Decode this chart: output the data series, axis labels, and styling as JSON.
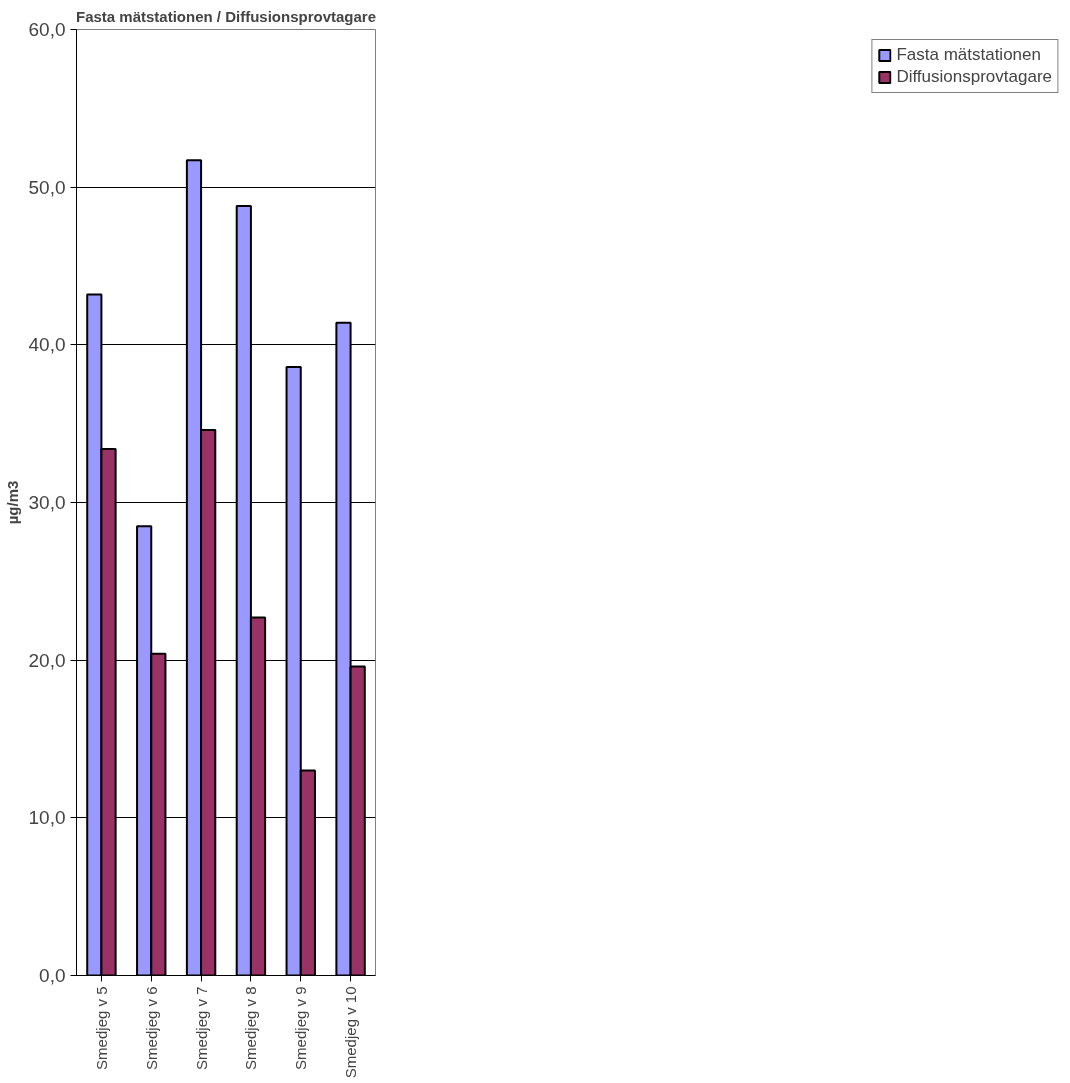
{
  "chart_data": {
    "type": "bar",
    "title": "Fasta mätstationen / Diffusionsprovtagare",
    "ylabel": "µg/m3",
    "categories": [
      "Smedjeg v 5",
      "Smedjeg v 6",
      "Smedjeg v 7",
      "Smedjeg v 8",
      "Smedjeg v 9",
      "Smedjeg v 10"
    ],
    "series": [
      {
        "name": "Fasta mätstationen",
        "color": "#9999ff",
        "values": [
          43.2,
          28.5,
          51.7,
          48.8,
          38.6,
          41.4
        ]
      },
      {
        "name": "Diffusionsprovtagare",
        "color": "#993366",
        "values": [
          33.4,
          20.4,
          34.6,
          22.7,
          13.0,
          19.6
        ]
      }
    ],
    "ylim": [
      0,
      60
    ],
    "yticks": [
      {
        "value": 0,
        "label": "0,0"
      },
      {
        "value": 10,
        "label": "10,0"
      },
      {
        "value": 20,
        "label": "20,0"
      },
      {
        "value": 30,
        "label": "30,0"
      },
      {
        "value": 40,
        "label": "40,0"
      },
      {
        "value": 50,
        "label": "50,0"
      },
      {
        "value": 60,
        "label": "60,0"
      }
    ],
    "grid": "y",
    "legend": "right"
  }
}
